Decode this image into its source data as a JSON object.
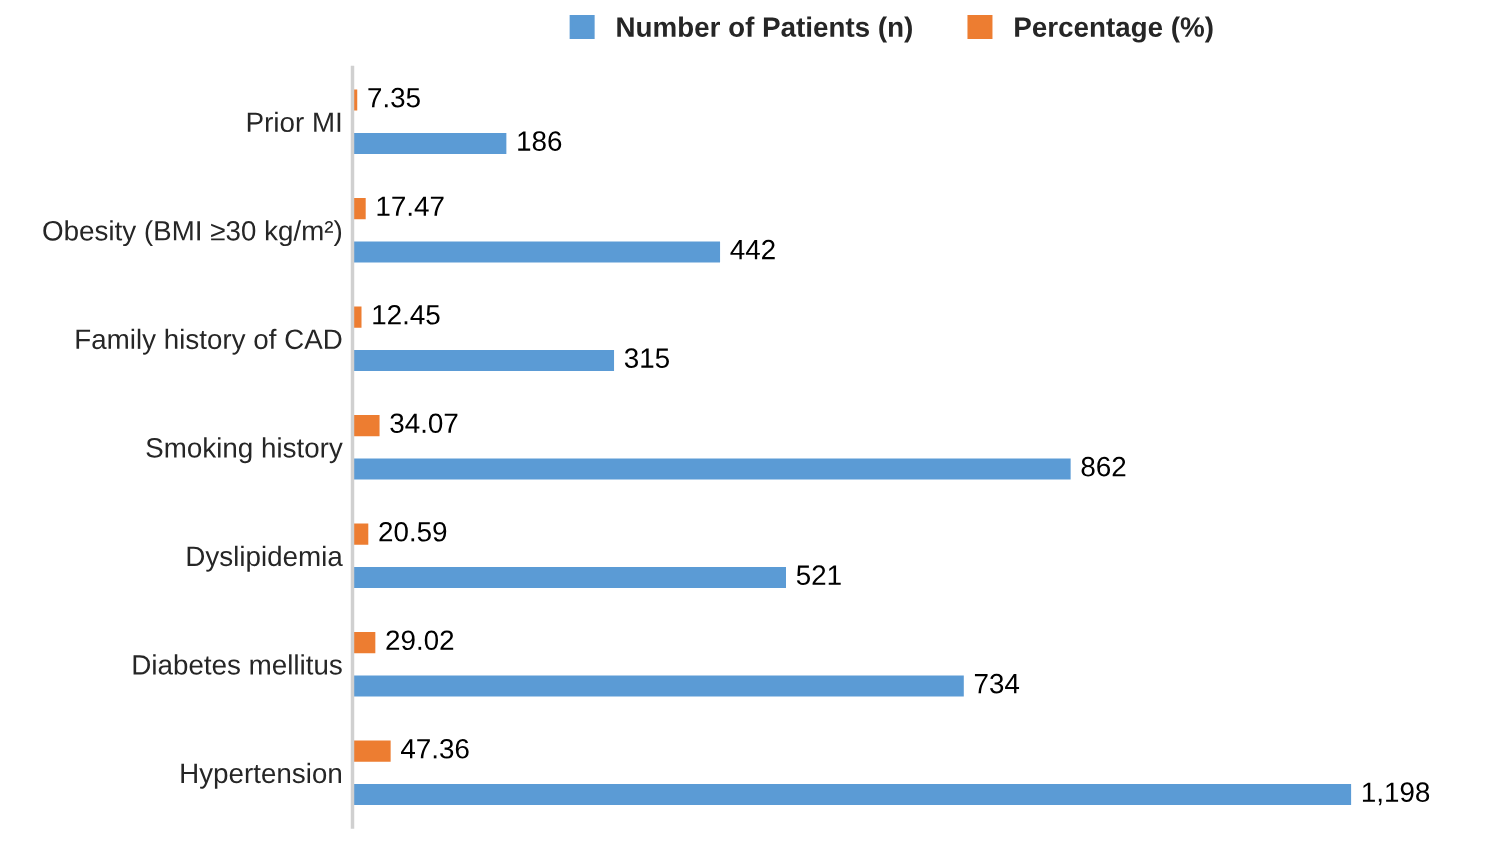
{
  "chart_data": {
    "type": "bar",
    "orientation": "horizontal",
    "categories": [
      "Prior MI",
      "Obesity (BMI ≥30 kg/m²)",
      "Family history of CAD",
      "Smoking history",
      "Dyslipidemia",
      "Diabetes mellitus",
      "Hypertension"
    ],
    "series": [
      {
        "name": "Percentage (%)",
        "color": "#ed7d31",
        "values": [
          7.35,
          17.47,
          12.45,
          34.07,
          20.59,
          29.02,
          47.36
        ],
        "value_labels": [
          "7.35",
          "17.47",
          "12.45",
          "34.07",
          "20.59",
          "29.02",
          "47.36"
        ]
      },
      {
        "name": "Number of Patients (n)",
        "color": "#5b9bd5",
        "values": [
          186,
          442,
          315,
          862,
          521,
          734,
          1198
        ],
        "value_labels": [
          "186",
          "442",
          "315",
          "862",
          "521",
          "734",
          "1,198"
        ]
      }
    ],
    "legend": "top",
    "grid": false,
    "tick_labels": "y"
  }
}
